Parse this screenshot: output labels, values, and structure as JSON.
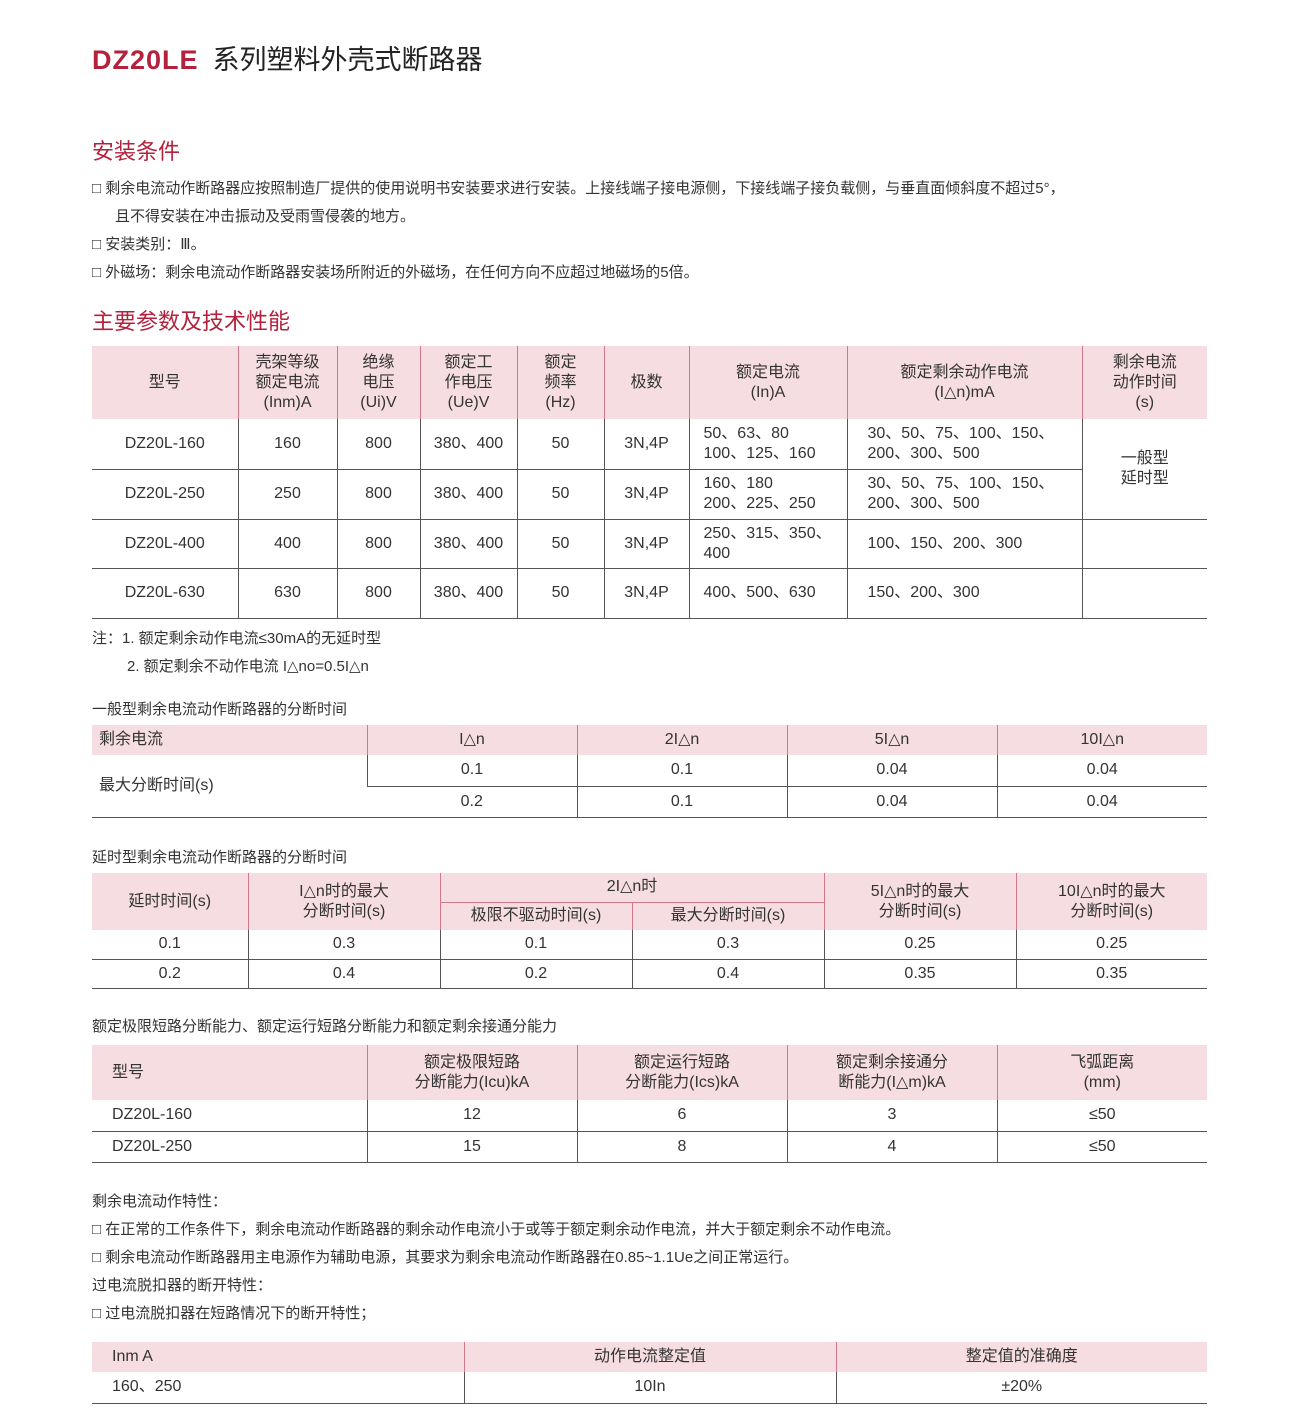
{
  "header": {
    "model": "DZ20LE",
    "title": "系列塑料外壳式断路器"
  },
  "install": {
    "heading": "安装条件",
    "items": [
      "□ 剩余电流动作断路器应按照制造厂提供的使用说明书安装要求进行安装。上接线端子接电源侧，下接线端子接负载侧，与垂直面倾斜度不超过5°，",
      "且不得安装在冲击振动及受雨雪侵袭的地方。",
      "□ 安装类别：Ⅲ。",
      "□ 外磁场：剩余电流动作断路器安装场所附近的外磁场，在任何方向不应超过地磁场的5倍。"
    ]
  },
  "params": {
    "heading": "主要参数及技术性能",
    "headers": [
      "型号",
      "壳架等级\n额定电流\n(Inm)A",
      "绝缘\n电压\n(Ui)V",
      "额定工\n作电压\n(Ue)V",
      "额定\n频率\n(Hz)",
      "极数",
      "额定电流\n(In)A",
      "额定剩余动作电流\n(I△n)mA",
      "剩余电流\n动作时间\n(s)"
    ],
    "rows": [
      [
        "DZ20L-160",
        "160",
        "800",
        "380、400",
        "50",
        "3N,4P",
        "50、63、80\n100、125、160",
        "30、50、75、100、150、\n200、300、500"
      ],
      [
        "DZ20L-250",
        "250",
        "800",
        "380、400",
        "50",
        "3N,4P",
        "160、180\n200、225、250",
        "30、50、75、100、150、\n200、300、500"
      ],
      [
        "DZ20L-400",
        "400",
        "800",
        "380、400",
        "50",
        "3N,4P",
        "250、315、350、\n400",
        "100、150、200、300"
      ],
      [
        "DZ20L-630",
        "630",
        "800",
        "380、400",
        "50",
        "3N,4P",
        "400、500、630",
        "150、200、300"
      ]
    ],
    "time_type": "一般型\n延时型",
    "notes": [
      "注：1. 额定剩余动作电流≤30mA的无延时型",
      "2. 额定剩余不动作电流 I△no=0.5I△n"
    ]
  },
  "general": {
    "caption": "一般型剩余电流动作断路器的分断时间",
    "headers": [
      "剩余电流",
      "I△n",
      "2I△n",
      "5I△n",
      "10I△n"
    ],
    "row_label": "最大分断时间(s)",
    "rows": [
      [
        "0.1",
        "0.1",
        "0.04",
        "0.04"
      ],
      [
        "0.2",
        "0.1",
        "0.04",
        "0.04"
      ]
    ]
  },
  "delay": {
    "caption": "延时型剩余电流动作断路器的分断时间",
    "headers": [
      "延时时间(s)",
      "I△n时的最大\n分断时间(s)",
      "2I△n时",
      "5I△n时的最大\n分断时间(s)",
      "10I△n时的最大\n分断时间(s)"
    ],
    "sub_headers": [
      "极限不驱动时间(s)",
      "最大分断时间(s)"
    ],
    "rows": [
      [
        "0.1",
        "0.3",
        "0.1",
        "0.3",
        "0.25",
        "0.25"
      ],
      [
        "0.2",
        "0.4",
        "0.2",
        "0.4",
        "0.35",
        "0.35"
      ]
    ]
  },
  "capacity": {
    "caption": "额定极限短路分断能力、额定运行短路分断能力和额定剩余接通分能力",
    "headers": [
      "型号",
      "额定极限短路\n分断能力(Icu)kA",
      "额定运行短路\n分断能力(Ics)kA",
      "额定剩余接通分\n断能力(I△m)kA",
      "飞弧距离\n(mm)"
    ],
    "rows": [
      [
        "DZ20L-160",
        "12",
        "6",
        "3",
        "≤50"
      ],
      [
        "DZ20L-250",
        "15",
        "8",
        "4",
        "≤50"
      ]
    ]
  },
  "characteristics": {
    "lines": [
      "剩余电流动作特性：",
      "□ 在正常的工作条件下，剩余电流动作断路器的剩余动作电流小于或等于额定剩余动作电流，并大于额定剩余不动作电流。",
      "□ 剩余电流动作断路器用主电源作为辅助电源，其要求为剩余电流动作断路器在0.85~1.1Ue之间正常运行。",
      "过电流脱扣器的断开特性：",
      "□ 过电流脱扣器在短路情况下的断开特性；"
    ]
  },
  "overcurrent": {
    "headers": [
      "Inm A",
      "动作电流整定值",
      "整定值的准确度"
    ],
    "rows": [
      [
        "160、250",
        "10In",
        "±20%"
      ]
    ]
  },
  "colors": {
    "accent": "#b3213c",
    "header_bg": "#f6dde2"
  }
}
